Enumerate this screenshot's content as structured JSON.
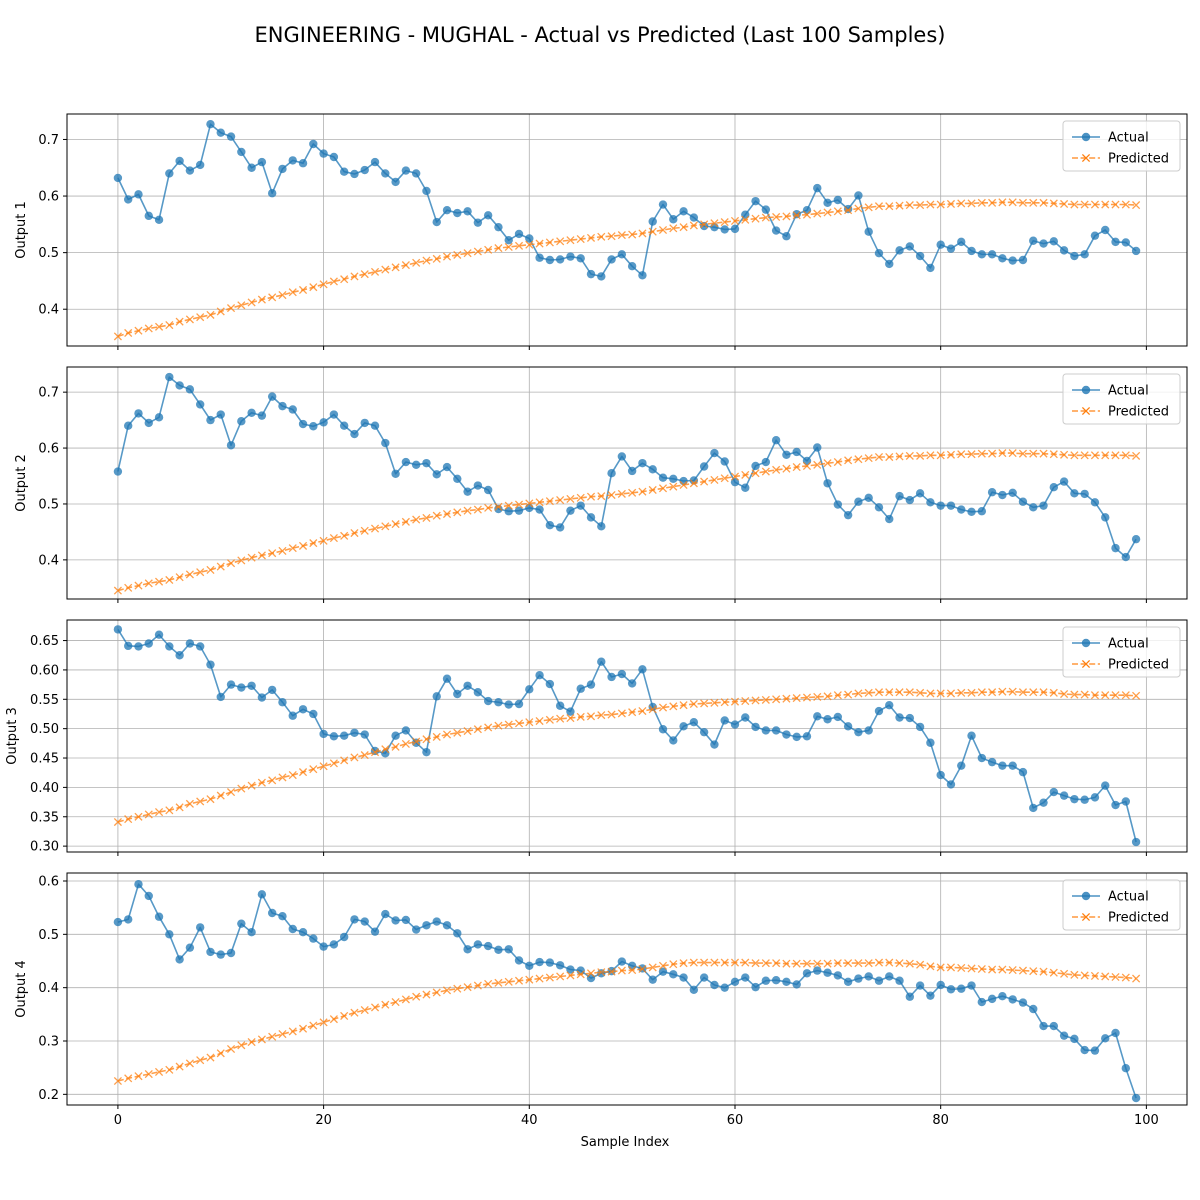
{
  "figure": {
    "title": "ENGINEERING - MUGHAL - Actual vs Predicted (Last 100 Samples)",
    "xlabel": "Sample Index"
  },
  "colors": {
    "actual": "#1f77b4",
    "predicted": "#ff7f0e",
    "grid": "#b0b0b0"
  },
  "chart_data": [
    {
      "type": "line",
      "ylabel": "Output 1",
      "xlim": [
        -4.95,
        103.95
      ],
      "ylim": [
        0.335,
        0.745
      ],
      "xticks": [
        0,
        20,
        40,
        60,
        80,
        100
      ],
      "yticks": [
        0.4,
        0.5,
        0.6,
        0.7
      ],
      "grid": true,
      "legend": "upper-right",
      "x_start": 0,
      "series": [
        {
          "name": "Actual",
          "marker": "circle",
          "values": [
            0.632,
            0.594,
            0.603,
            0.565,
            0.558,
            0.64,
            0.662,
            0.645,
            0.655,
            0.727,
            0.712,
            0.705,
            0.678,
            0.65,
            0.66,
            0.605,
            0.648,
            0.663,
            0.658,
            0.692,
            0.675,
            0.669,
            0.643,
            0.639,
            0.646,
            0.66,
            0.64,
            0.625,
            0.645,
            0.64,
            0.609,
            0.554,
            0.575,
            0.57,
            0.573,
            0.553,
            0.566,
            0.545,
            0.522,
            0.533,
            0.525,
            0.491,
            0.487,
            0.488,
            0.493,
            0.49,
            0.462,
            0.458,
            0.488,
            0.497,
            0.476,
            0.46,
            0.555,
            0.585,
            0.559,
            0.573,
            0.562,
            0.547,
            0.545,
            0.541,
            0.542,
            0.567,
            0.591,
            0.576,
            0.539,
            0.529,
            0.568,
            0.575,
            0.614,
            0.588,
            0.593,
            0.577,
            0.601,
            0.537,
            0.499,
            0.48,
            0.504,
            0.511,
            0.494,
            0.473,
            0.514,
            0.507,
            0.519,
            0.503,
            0.497,
            0.497,
            0.49,
            0.486,
            0.487,
            0.521,
            0.516,
            0.52,
            0.504,
            0.494,
            0.497,
            0.53,
            0.54,
            0.519,
            0.518,
            0.503
          ]
        },
        {
          "name": "Predicted",
          "marker": "x",
          "dashed": true,
          "values": [
            0.352,
            0.358,
            0.362,
            0.366,
            0.369,
            0.372,
            0.378,
            0.382,
            0.386,
            0.39,
            0.396,
            0.402,
            0.407,
            0.412,
            0.417,
            0.421,
            0.425,
            0.43,
            0.434,
            0.439,
            0.444,
            0.449,
            0.453,
            0.458,
            0.462,
            0.466,
            0.47,
            0.474,
            0.478,
            0.482,
            0.486,
            0.489,
            0.493,
            0.496,
            0.499,
            0.502,
            0.505,
            0.508,
            0.51,
            0.512,
            0.514,
            0.516,
            0.518,
            0.52,
            0.522,
            0.524,
            0.526,
            0.528,
            0.529,
            0.531,
            0.532,
            0.534,
            0.537,
            0.54,
            0.543,
            0.545,
            0.548,
            0.55,
            0.552,
            0.554,
            0.556,
            0.558,
            0.56,
            0.562,
            0.563,
            0.564,
            0.566,
            0.567,
            0.569,
            0.571,
            0.573,
            0.575,
            0.578,
            0.58,
            0.582,
            0.582,
            0.583,
            0.584,
            0.584,
            0.585,
            0.585,
            0.586,
            0.587,
            0.587,
            0.588,
            0.588,
            0.589,
            0.589,
            0.588,
            0.588,
            0.588,
            0.587,
            0.586,
            0.585,
            0.585,
            0.585,
            0.585,
            0.585,
            0.585,
            0.584
          ]
        }
      ]
    },
    {
      "type": "line",
      "ylabel": "Output 2",
      "xlim": [
        -4.95,
        103.95
      ],
      "ylim": [
        0.33,
        0.745
      ],
      "xticks": [
        0,
        20,
        40,
        60,
        80,
        100
      ],
      "yticks": [
        0.4,
        0.5,
        0.6,
        0.7
      ],
      "grid": true,
      "legend": "upper-right",
      "x_start": 0,
      "series": [
        {
          "name": "Actual",
          "marker": "circle",
          "values": [
            0.558,
            0.64,
            0.662,
            0.645,
            0.655,
            0.727,
            0.712,
            0.705,
            0.678,
            0.65,
            0.66,
            0.605,
            0.648,
            0.663,
            0.658,
            0.692,
            0.675,
            0.669,
            0.643,
            0.639,
            0.646,
            0.66,
            0.64,
            0.625,
            0.645,
            0.64,
            0.609,
            0.554,
            0.575,
            0.57,
            0.573,
            0.553,
            0.566,
            0.545,
            0.522,
            0.533,
            0.525,
            0.491,
            0.487,
            0.488,
            0.493,
            0.49,
            0.462,
            0.458,
            0.488,
            0.497,
            0.476,
            0.46,
            0.555,
            0.585,
            0.559,
            0.573,
            0.562,
            0.547,
            0.545,
            0.541,
            0.542,
            0.567,
            0.591,
            0.576,
            0.539,
            0.529,
            0.568,
            0.575,
            0.614,
            0.588,
            0.593,
            0.577,
            0.601,
            0.537,
            0.499,
            0.48,
            0.504,
            0.511,
            0.494,
            0.473,
            0.514,
            0.507,
            0.519,
            0.503,
            0.497,
            0.497,
            0.49,
            0.486,
            0.487,
            0.521,
            0.516,
            0.52,
            0.504,
            0.494,
            0.497,
            0.53,
            0.54,
            0.519,
            0.518,
            0.503,
            0.476,
            0.421,
            0.405,
            0.437
          ]
        },
        {
          "name": "Predicted",
          "marker": "x",
          "dashed": true,
          "values": [
            0.345,
            0.35,
            0.354,
            0.358,
            0.361,
            0.364,
            0.369,
            0.374,
            0.378,
            0.382,
            0.388,
            0.394,
            0.399,
            0.404,
            0.408,
            0.412,
            0.416,
            0.421,
            0.425,
            0.43,
            0.434,
            0.439,
            0.443,
            0.448,
            0.452,
            0.456,
            0.46,
            0.464,
            0.468,
            0.472,
            0.475,
            0.479,
            0.482,
            0.485,
            0.488,
            0.49,
            0.493,
            0.495,
            0.497,
            0.499,
            0.501,
            0.503,
            0.505,
            0.507,
            0.509,
            0.511,
            0.513,
            0.514,
            0.516,
            0.518,
            0.52,
            0.522,
            0.525,
            0.528,
            0.531,
            0.534,
            0.537,
            0.54,
            0.543,
            0.546,
            0.549,
            0.552,
            0.555,
            0.558,
            0.561,
            0.563,
            0.566,
            0.568,
            0.57,
            0.573,
            0.575,
            0.578,
            0.58,
            0.582,
            0.584,
            0.584,
            0.585,
            0.586,
            0.586,
            0.587,
            0.587,
            0.588,
            0.589,
            0.589,
            0.59,
            0.59,
            0.591,
            0.591,
            0.59,
            0.59,
            0.59,
            0.589,
            0.588,
            0.587,
            0.587,
            0.587,
            0.587,
            0.587,
            0.587,
            0.586
          ]
        }
      ]
    },
    {
      "type": "line",
      "ylabel": "Output 3",
      "xlim": [
        -4.95,
        103.95
      ],
      "ylim": [
        0.29,
        0.685
      ],
      "xticks": [
        0,
        20,
        40,
        60,
        80,
        100
      ],
      "yticks": [
        0.3,
        0.35,
        0.4,
        0.45,
        0.5,
        0.55,
        0.6,
        0.65
      ],
      "ytick_labels": [
        "0.30",
        "0.35",
        "0.40",
        "0.45",
        "0.50",
        "0.55",
        "0.60",
        "0.65"
      ],
      "grid": true,
      "legend": "upper-right",
      "x_start": 0,
      "series": [
        {
          "name": "Actual",
          "marker": "circle",
          "values": [
            0.669,
            0.641,
            0.64,
            0.645,
            0.66,
            0.64,
            0.625,
            0.645,
            0.64,
            0.609,
            0.554,
            0.575,
            0.57,
            0.573,
            0.553,
            0.566,
            0.545,
            0.522,
            0.533,
            0.525,
            0.491,
            0.487,
            0.488,
            0.493,
            0.49,
            0.462,
            0.458,
            0.488,
            0.497,
            0.476,
            0.46,
            0.555,
            0.585,
            0.559,
            0.573,
            0.562,
            0.547,
            0.545,
            0.541,
            0.542,
            0.567,
            0.591,
            0.576,
            0.539,
            0.529,
            0.568,
            0.575,
            0.614,
            0.588,
            0.593,
            0.577,
            0.601,
            0.537,
            0.499,
            0.48,
            0.504,
            0.511,
            0.494,
            0.473,
            0.514,
            0.507,
            0.519,
            0.503,
            0.497,
            0.497,
            0.49,
            0.486,
            0.487,
            0.521,
            0.516,
            0.52,
            0.504,
            0.494,
            0.497,
            0.53,
            0.54,
            0.519,
            0.518,
            0.503,
            0.476,
            0.421,
            0.405,
            0.437,
            0.488,
            0.45,
            0.443,
            0.437,
            0.437,
            0.426,
            0.365,
            0.374,
            0.392,
            0.386,
            0.38,
            0.379,
            0.383,
            0.403,
            0.37,
            0.376,
            0.307
          ]
        },
        {
          "name": "Predicted",
          "marker": "x",
          "dashed": true,
          "values": [
            0.341,
            0.346,
            0.35,
            0.354,
            0.358,
            0.361,
            0.366,
            0.372,
            0.376,
            0.38,
            0.386,
            0.392,
            0.398,
            0.403,
            0.408,
            0.412,
            0.417,
            0.421,
            0.426,
            0.431,
            0.436,
            0.441,
            0.446,
            0.451,
            0.455,
            0.46,
            0.465,
            0.469,
            0.474,
            0.478,
            0.482,
            0.486,
            0.49,
            0.493,
            0.496,
            0.499,
            0.502,
            0.505,
            0.507,
            0.509,
            0.511,
            0.513,
            0.515,
            0.517,
            0.518,
            0.52,
            0.521,
            0.523,
            0.524,
            0.526,
            0.528,
            0.53,
            0.533,
            0.536,
            0.538,
            0.54,
            0.542,
            0.543,
            0.544,
            0.545,
            0.546,
            0.547,
            0.548,
            0.549,
            0.55,
            0.551,
            0.552,
            0.553,
            0.554,
            0.555,
            0.557,
            0.558,
            0.56,
            0.561,
            0.562,
            0.562,
            0.562,
            0.562,
            0.561,
            0.56,
            0.56,
            0.56,
            0.561,
            0.561,
            0.562,
            0.562,
            0.563,
            0.563,
            0.562,
            0.562,
            0.562,
            0.561,
            0.559,
            0.558,
            0.558,
            0.557,
            0.557,
            0.557,
            0.557,
            0.556
          ]
        }
      ]
    },
    {
      "type": "line",
      "ylabel": "Output 4",
      "xlim": [
        -4.95,
        103.95
      ],
      "ylim": [
        0.18,
        0.615
      ],
      "xticks": [
        0,
        20,
        40,
        60,
        80,
        100
      ],
      "yticks": [
        0.2,
        0.3,
        0.4,
        0.5,
        0.6
      ],
      "grid": true,
      "legend": "upper-right",
      "x_start": 0,
      "series": [
        {
          "name": "Actual",
          "marker": "circle",
          "values": [
            0.523,
            0.528,
            0.594,
            0.572,
            0.533,
            0.5,
            0.453,
            0.475,
            0.513,
            0.467,
            0.462,
            0.465,
            0.52,
            0.504,
            0.575,
            0.54,
            0.534,
            0.51,
            0.504,
            0.492,
            0.477,
            0.481,
            0.495,
            0.528,
            0.524,
            0.505,
            0.538,
            0.526,
            0.527,
            0.509,
            0.517,
            0.524,
            0.517,
            0.502,
            0.472,
            0.481,
            0.478,
            0.471,
            0.472,
            0.451,
            0.441,
            0.448,
            0.447,
            0.442,
            0.434,
            0.432,
            0.418,
            0.427,
            0.431,
            0.449,
            0.441,
            0.436,
            0.415,
            0.43,
            0.425,
            0.419,
            0.396,
            0.419,
            0.405,
            0.4,
            0.411,
            0.419,
            0.401,
            0.413,
            0.414,
            0.411,
            0.406,
            0.427,
            0.432,
            0.428,
            0.423,
            0.411,
            0.417,
            0.421,
            0.413,
            0.421,
            0.413,
            0.383,
            0.404,
            0.385,
            0.405,
            0.397,
            0.398,
            0.404,
            0.373,
            0.379,
            0.384,
            0.378,
            0.372,
            0.36,
            0.328,
            0.328,
            0.31,
            0.304,
            0.283,
            0.282,
            0.305,
            0.315,
            0.249,
            0.193
          ]
        },
        {
          "name": "Predicted",
          "marker": "x",
          "dashed": true,
          "values": [
            0.225,
            0.23,
            0.234,
            0.238,
            0.242,
            0.246,
            0.252,
            0.258,
            0.264,
            0.269,
            0.277,
            0.285,
            0.292,
            0.298,
            0.303,
            0.308,
            0.313,
            0.318,
            0.323,
            0.329,
            0.335,
            0.341,
            0.347,
            0.353,
            0.358,
            0.363,
            0.368,
            0.373,
            0.378,
            0.383,
            0.387,
            0.391,
            0.395,
            0.398,
            0.401,
            0.404,
            0.407,
            0.409,
            0.411,
            0.413,
            0.415,
            0.417,
            0.419,
            0.421,
            0.423,
            0.425,
            0.427,
            0.429,
            0.43,
            0.432,
            0.433,
            0.435,
            0.438,
            0.441,
            0.444,
            0.446,
            0.447,
            0.447,
            0.447,
            0.447,
            0.447,
            0.447,
            0.446,
            0.446,
            0.446,
            0.445,
            0.445,
            0.445,
            0.445,
            0.445,
            0.446,
            0.446,
            0.446,
            0.446,
            0.447,
            0.447,
            0.446,
            0.445,
            0.443,
            0.44,
            0.438,
            0.438,
            0.437,
            0.436,
            0.435,
            0.434,
            0.434,
            0.433,
            0.432,
            0.431,
            0.43,
            0.428,
            0.426,
            0.424,
            0.423,
            0.422,
            0.421,
            0.42,
            0.419,
            0.417
          ]
        }
      ]
    }
  ]
}
